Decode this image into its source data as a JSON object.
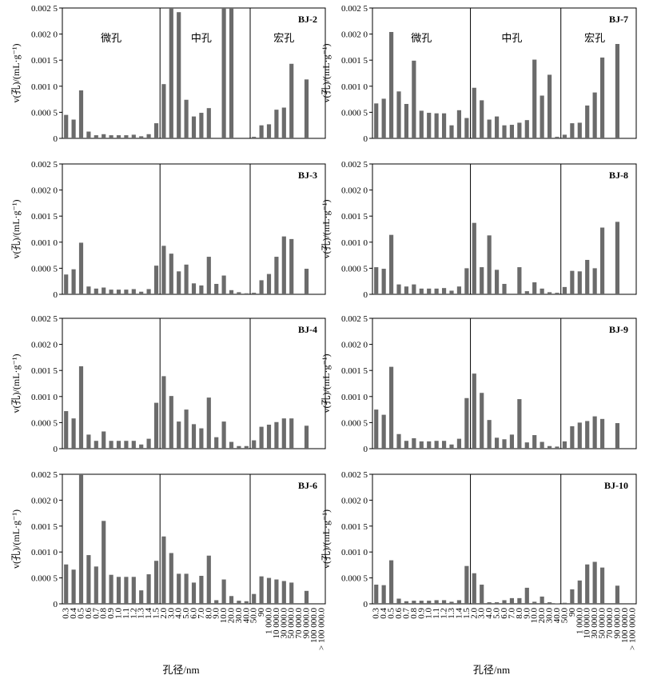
{
  "figure": {
    "ylabel": "v(孔)/(mL·g⁻¹)",
    "xlabel": "孔径/nm",
    "region_labels": [
      "微孔",
      "中孔",
      "宏孔"
    ],
    "ytick_labels": [
      "0",
      "0.000 5",
      "0.001 0",
      "0.001 5",
      "0.002 0",
      "0.002 5"
    ],
    "ylim": [
      0,
      0.0025
    ],
    "categories": [
      "0.3",
      "0.4",
      "0.5",
      "0.6",
      "0.7",
      "0.8",
      "0.9",
      "1.0",
      "1.1",
      "1.2",
      "1.3",
      "1.4",
      "1.5",
      "2.0",
      "3.0",
      "4.0",
      "5.0",
      "6.0",
      "7.0",
      "8.0",
      "9.0",
      "10.0",
      "20.0",
      "30.0",
      "40.0",
      "50.0",
      "90",
      "1 000.0",
      "10 000.0",
      "30 000.0",
      "50 000.0",
      "70 000.0",
      "90 000.0",
      "100 000.0",
      "> 100 000.0"
    ],
    "bar_color": "#6b6b6b"
  },
  "chart_data": [
    {
      "type": "bar",
      "title": "BJ-2",
      "values": [
        0.00045,
        0.00036,
        0.00092,
        0.00013,
        6e-05,
        8e-05,
        6e-05,
        6e-05,
        6e-05,
        7e-05,
        4e-05,
        8e-05,
        0.00029,
        0.00104,
        0.0025,
        0.00242,
        0.00074,
        0.00042,
        0.00049,
        0.00058,
        0,
        0.0025,
        0.0025,
        0,
        0,
        3e-05,
        0.00025,
        0.00027,
        0.00055,
        0.00059,
        0.00143,
        0,
        0.00113,
        0,
        0
      ],
      "ylim": [
        0,
        0.0025
      ]
    },
    {
      "type": "bar",
      "title": "BJ-7",
      "values": [
        0.00067,
        0.00076,
        0.00204,
        0.0009,
        0.00066,
        0.00149,
        0.00053,
        0.00049,
        0.00048,
        0.00048,
        0.00025,
        0.00054,
        0.00039,
        0.00097,
        0.00073,
        0.00036,
        0.00042,
        0.00025,
        0.00026,
        0.0003,
        0.00035,
        0.00151,
        0.00082,
        0.00122,
        3e-05,
        7e-05,
        0.00029,
        0.0003,
        0.00063,
        0.00088,
        0.00155,
        0,
        0.00181,
        0,
        0
      ],
      "ylim": [
        0,
        0.0025
      ]
    },
    {
      "type": "bar",
      "title": "BJ-3",
      "values": [
        0.00038,
        0.00048,
        0.00099,
        0.00015,
        0.00011,
        0.00013,
        9e-05,
        9e-05,
        9e-05,
        0.0001,
        5e-05,
        0.0001,
        0.00055,
        0.00093,
        0.00078,
        0.00044,
        0.00057,
        0.00021,
        0.00017,
        0.00072,
        0.0002,
        0.00036,
        8e-05,
        4e-05,
        2e-05,
        3e-05,
        0.00027,
        0.00039,
        0.00072,
        0.00111,
        0.00106,
        0,
        0.00049,
        0,
        0
      ],
      "ylim": [
        0,
        0.0025
      ]
    },
    {
      "type": "bar",
      "title": "BJ-8",
      "values": [
        0.00052,
        0.00049,
        0.00114,
        0.00019,
        0.00015,
        0.00019,
        0.00011,
        0.00011,
        0.00011,
        0.00012,
        7e-05,
        0.00015,
        0.0005,
        0.00137,
        0.00052,
        0.00113,
        0.00047,
        0.0002,
        0,
        0.00052,
        6e-05,
        0.00023,
        0.00011,
        4e-05,
        3e-05,
        0.00014,
        0.00045,
        0.00044,
        0.00066,
        0.0005,
        0.00128,
        0,
        0.00139,
        0,
        0
      ],
      "ylim": [
        0,
        0.0025
      ]
    },
    {
      "type": "bar",
      "title": "BJ-4",
      "values": [
        0.00072,
        0.00058,
        0.00158,
        0.00027,
        0.00015,
        0.00033,
        0.00015,
        0.00015,
        0.00015,
        0.00015,
        8e-05,
        0.00019,
        0.00088,
        0.00139,
        0.00101,
        0.00052,
        0.00075,
        0.00047,
        0.00039,
        0.00098,
        0.00022,
        0.00052,
        0.00013,
        5e-05,
        5e-05,
        0.00016,
        0.00042,
        0.00046,
        0.00051,
        0.00058,
        0.00058,
        0,
        0.00044,
        0,
        0
      ],
      "ylim": [
        0,
        0.0025
      ]
    },
    {
      "type": "bar",
      "title": "BJ-9",
      "values": [
        0.00075,
        0.00065,
        0.00157,
        0.00028,
        0.00015,
        0.0002,
        0.00014,
        0.00014,
        0.00015,
        0.00015,
        8e-05,
        0.00019,
        0.00097,
        0.00144,
        0.00107,
        0.00055,
        0.00021,
        0.00018,
        0.00027,
        0.00095,
        0.00012,
        0.00026,
        0.00013,
        5e-05,
        4e-05,
        0.00014,
        0.00043,
        0.0005,
        0.00053,
        0.00062,
        0.00057,
        0,
        0.00049,
        0,
        0
      ],
      "ylim": [
        0,
        0.0025
      ]
    },
    {
      "type": "bar",
      "title": "BJ-6",
      "values": [
        0.00076,
        0.00066,
        0.0025,
        0.00094,
        0.00072,
        0.0016,
        0.00056,
        0.00052,
        0.00052,
        0.00052,
        0.00026,
        0.00057,
        0.00083,
        0.0013,
        0.00098,
        0.00058,
        0.00058,
        0.00041,
        0.00054,
        0.00093,
        7e-05,
        0.00047,
        0.00015,
        6e-05,
        5e-05,
        0.00019,
        0.00053,
        0.0005,
        0.00047,
        0.00044,
        0.00041,
        0,
        0.00025,
        0,
        0
      ],
      "ylim": [
        0,
        0.0025
      ]
    },
    {
      "type": "bar",
      "title": "BJ-10",
      "values": [
        0.00037,
        0.00036,
        0.00084,
        0.0001,
        5e-05,
        6e-05,
        6e-05,
        6e-05,
        7e-05,
        7e-05,
        4e-05,
        7e-05,
        0.00073,
        0.00059,
        0.00037,
        3e-05,
        3e-05,
        7e-05,
        0.00011,
        0.00011,
        0.00031,
        4e-05,
        0.00014,
        3e-05,
        1e-05,
        2e-05,
        0.00028,
        0.00045,
        0.00076,
        0.00081,
        0.0007,
        0,
        0.00035,
        0,
        0
      ],
      "ylim": [
        0,
        0.0025
      ]
    }
  ]
}
